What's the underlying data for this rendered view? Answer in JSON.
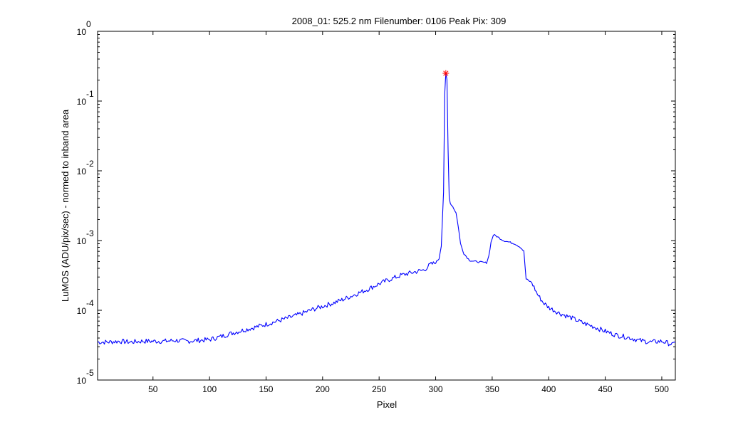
{
  "chart_data": {
    "type": "line",
    "title": "2008_01: 525.2 nm  Filenumber: 0106 Peak Pix: 309",
    "xlabel": "Pixel",
    "ylabel": "LuMOS (ADU/pix/sec) - normed to inband area",
    "xlim": [
      1,
      512
    ],
    "ylim": [
      1e-05,
      1
    ],
    "y_scale": "log",
    "grid": false,
    "x_ticks": [
      50,
      100,
      150,
      200,
      250,
      300,
      350,
      400,
      450,
      500
    ],
    "x_tick_labels": [
      "50",
      "100",
      "150",
      "200",
      "250",
      "300",
      "350",
      "400",
      "450",
      "500"
    ],
    "y_ticks": [
      {
        "base": "10",
        "exp": "0"
      },
      {
        "base": "10",
        "exp": "-1"
      },
      {
        "base": "10",
        "exp": "-2"
      },
      {
        "base": "10",
        "exp": "-3"
      },
      {
        "base": "10",
        "exp": "-4"
      },
      {
        "base": "10",
        "exp": "-5"
      }
    ],
    "line_color": "#0000ff",
    "marker_color": "#ff0000",
    "series": [
      {
        "x": [
          1,
          10,
          20,
          30,
          40,
          50,
          60,
          70,
          80,
          90,
          100,
          110,
          120,
          130,
          140,
          150,
          160,
          170,
          180,
          190,
          200,
          210,
          220,
          230,
          240,
          250,
          260,
          270,
          280,
          290,
          295,
          300,
          303,
          305,
          307,
          308,
          309,
          310,
          311,
          312,
          313,
          315,
          318,
          320,
          322,
          325,
          330,
          335,
          340,
          345,
          347,
          349,
          351,
          353,
          355,
          360,
          365,
          370,
          375,
          378,
          380,
          385,
          390,
          395,
          400,
          410,
          420,
          430,
          440,
          450,
          460,
          470,
          480,
          490,
          500,
          505,
          510,
          512
        ],
        "y": [
          3.5e-05,
          3.5e-05,
          3.6e-05,
          3.5e-05,
          3.6e-05,
          3.6e-05,
          3.6e-05,
          3.7e-05,
          3.6e-05,
          3.7e-05,
          3.8e-05,
          4.2e-05,
          4.7e-05,
          5.2e-05,
          5.7e-05,
          6.3e-05,
          7e-05,
          7.8e-05,
          8.8e-05,
          0.000101,
          0.000114,
          0.000128,
          0.000147,
          0.000172,
          0.0002,
          0.00024,
          0.00028,
          0.00032,
          0.00035,
          0.00038,
          0.00045,
          0.00048,
          0.00055,
          0.00085,
          0.005,
          0.12,
          0.25,
          0.2,
          0.02,
          0.0042,
          0.0034,
          0.0031,
          0.0025,
          0.0016,
          0.0009,
          0.00065,
          0.00052,
          0.0005,
          0.00049,
          0.00048,
          0.0006,
          0.00095,
          0.0012,
          0.00118,
          0.00112,
          0.001,
          0.00095,
          0.0009,
          0.0008,
          0.0007,
          0.00028,
          0.00025,
          0.00017,
          0.00013,
          0.00011,
          9e-05,
          7.8e-05,
          6.6e-05,
          5.8e-05,
          5e-05,
          4.4e-05,
          4.1e-05,
          3.7e-05,
          3.5e-05,
          3.6e-05,
          3.4e-05,
          3.2e-05,
          3.5e-05
        ]
      }
    ],
    "peak": {
      "x": 309,
      "y": 0.25
    }
  }
}
